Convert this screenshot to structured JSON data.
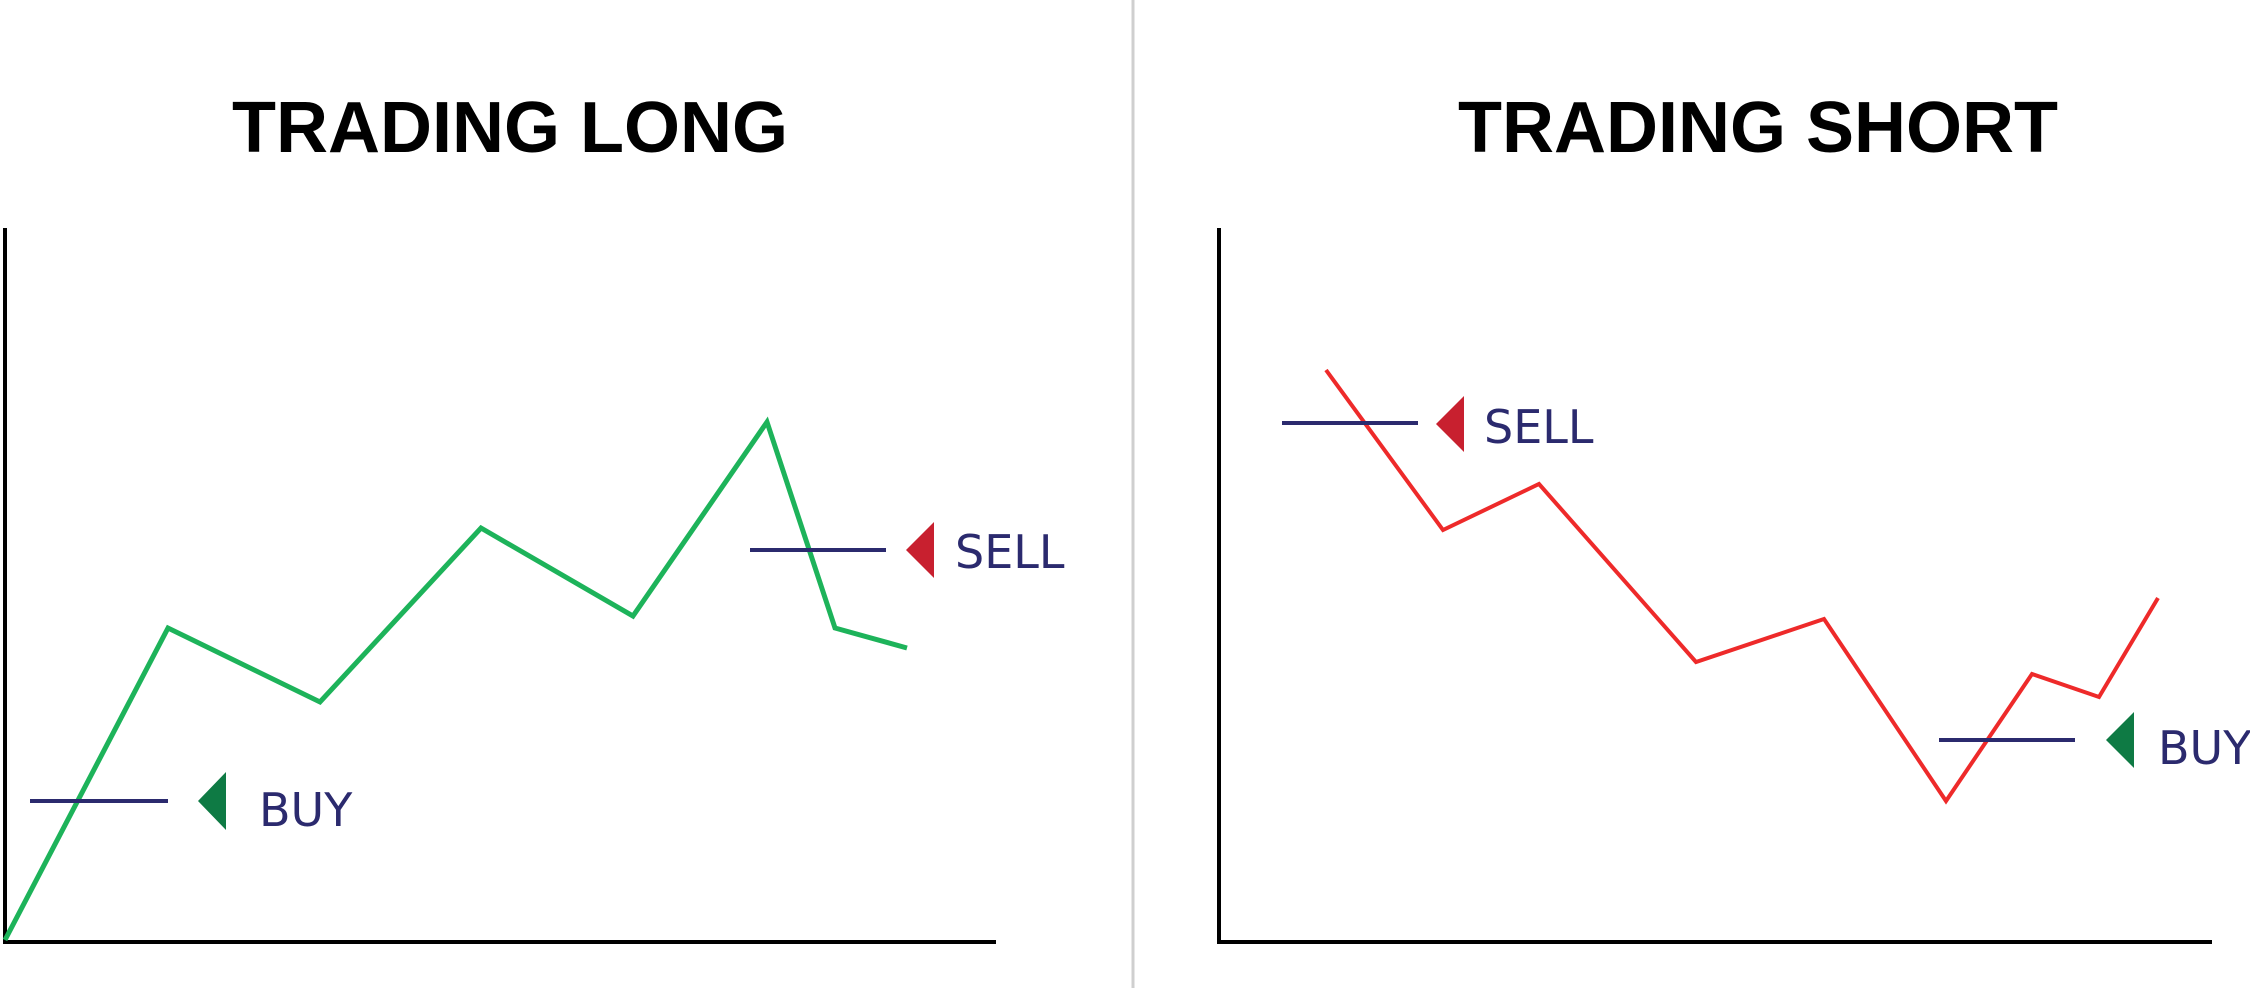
{
  "colors": {
    "long_line": "#1db35a",
    "short_line": "#ee2a2a",
    "level_line": "#2b2a6e",
    "label_text": "#2b2a6e",
    "buy_marker": "#0e7a44",
    "sell_marker": "#c8202f",
    "axis": "#000000",
    "divider": "#cfcfcf"
  },
  "panels": [
    {
      "id": "long",
      "title": "TRADING LONG",
      "buy_label": "BUY",
      "sell_label": "SELL",
      "buy_icon": "triangle-left",
      "sell_icon": "triangle-left"
    },
    {
      "id": "short",
      "title": "TRADING SHORT",
      "buy_label": "BUY",
      "sell_label": "SELL",
      "buy_icon": "triangle-left",
      "sell_icon": "triangle-left"
    }
  ]
}
